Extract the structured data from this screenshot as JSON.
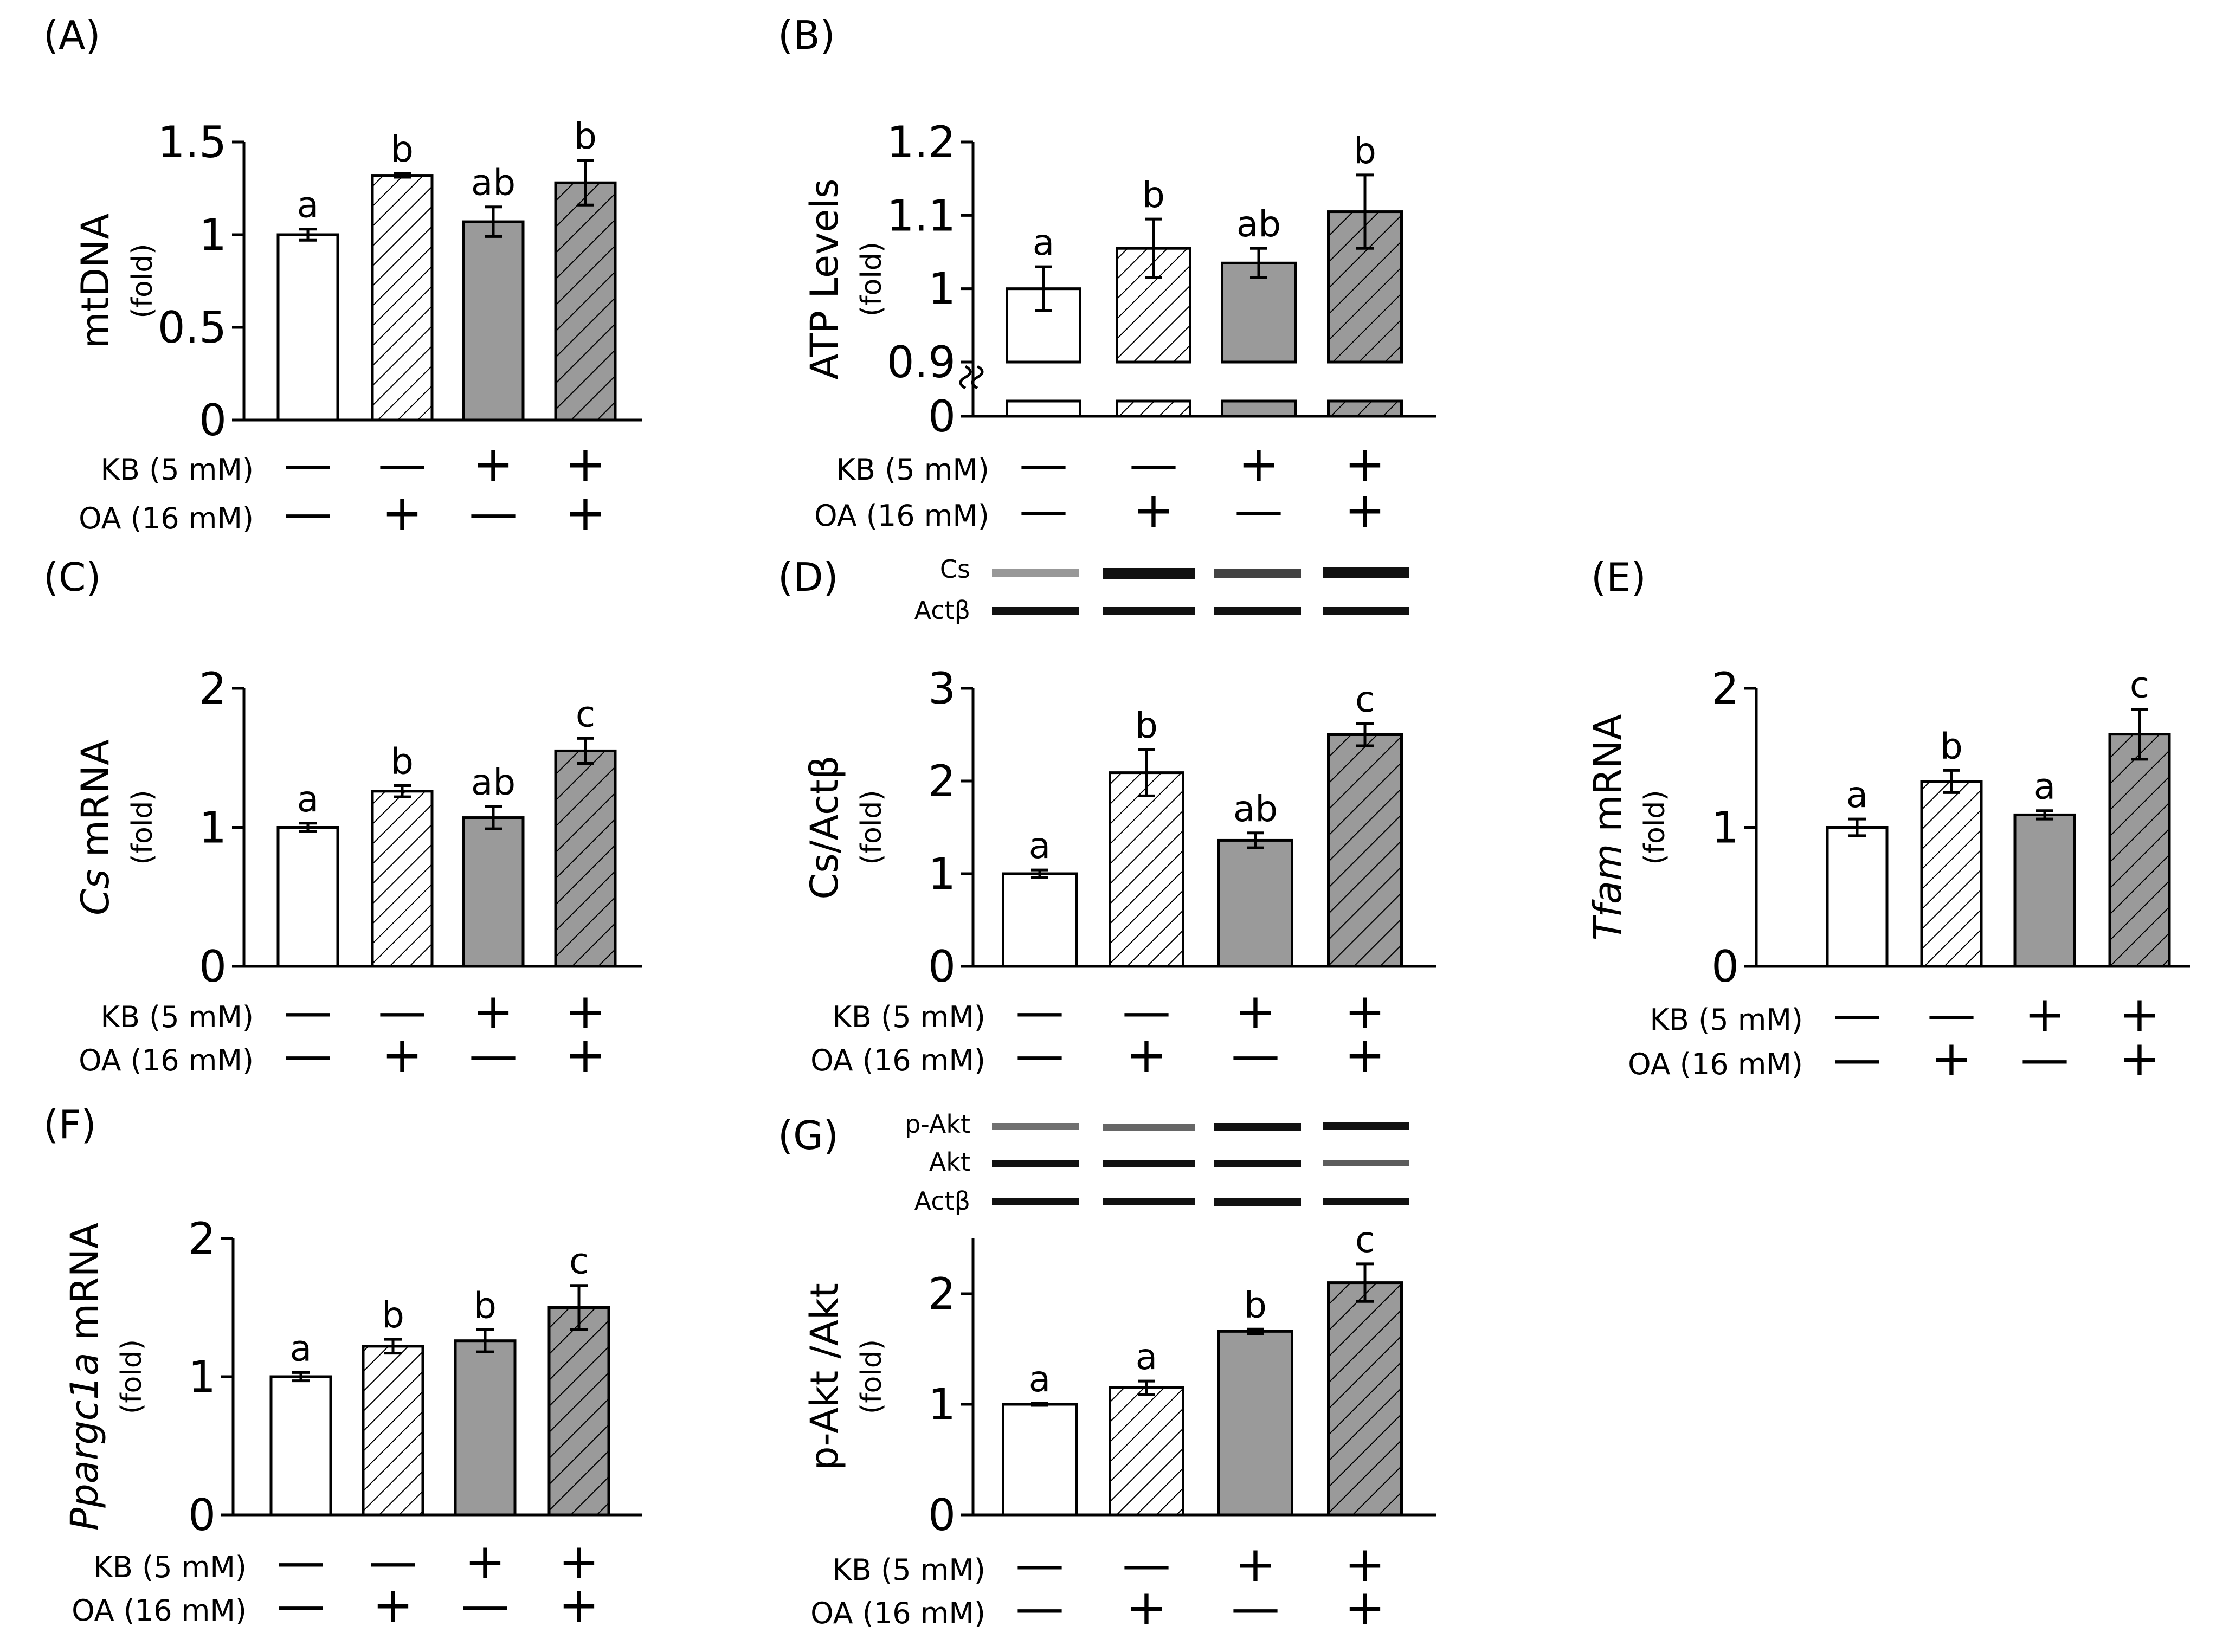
{
  "figure": {
    "condition_labels": {
      "kb": "KB (5 mM)",
      "oa": "OA (16 mM)"
    },
    "kb_signs": [
      "—",
      "—",
      "+",
      "+"
    ],
    "oa_signs": [
      "—",
      "+",
      "—",
      "+"
    ],
    "bar_styles": [
      "white",
      "hatch",
      "gray",
      "grayhatch"
    ],
    "colors": {
      "gray": "#9a9a9a",
      "white": "#ffffff",
      "line": "#000000"
    }
  },
  "chart_data": [
    {
      "id": "A",
      "type": "bar",
      "panel_label": "(A)",
      "ylabel_parts": [
        {
          "text": "mtDNA",
          "italic": false
        }
      ],
      "yunit": "(fold)",
      "ylim": [
        0,
        1.5
      ],
      "yticks": [
        0,
        0.5,
        1,
        1.5
      ],
      "ytick_labels": [
        "0",
        "0.5",
        "1",
        "1.5"
      ],
      "values": [
        1.0,
        1.32,
        1.07,
        1.28
      ],
      "errors": [
        0.03,
        0.01,
        0.08,
        0.12
      ],
      "letters": [
        "a",
        "b",
        "ab",
        "b"
      ]
    },
    {
      "id": "B",
      "type": "bar",
      "panel_label": "(B)",
      "ylabel_parts": [
        {
          "text": "ATP Levels",
          "italic": false
        }
      ],
      "yunit": "(fold)",
      "ylim": [
        0.85,
        1.2
      ],
      "axis_break": true,
      "break_floor_label": "0",
      "yticks": [
        0.9,
        1.0,
        1.1,
        1.2
      ],
      "ytick_labels": [
        "0.9",
        "1",
        "1.1",
        "1.2"
      ],
      "values": [
        1.0,
        1.055,
        1.035,
        1.105
      ],
      "errors": [
        0.03,
        0.04,
        0.02,
        0.05
      ],
      "letters": [
        "a",
        "b",
        "ab",
        "b"
      ]
    },
    {
      "id": "C",
      "type": "bar",
      "panel_label": "(C)",
      "ylabel_parts": [
        {
          "text": "Cs",
          "italic": true
        },
        {
          "text": " mRNA",
          "italic": false
        }
      ],
      "yunit": "(fold)",
      "ylim": [
        0,
        2
      ],
      "yticks": [
        0,
        1,
        2
      ],
      "ytick_labels": [
        "0",
        "1",
        "2"
      ],
      "values": [
        1.0,
        1.26,
        1.07,
        1.55
      ],
      "errors": [
        0.03,
        0.04,
        0.08,
        0.09
      ],
      "letters": [
        "a",
        "b",
        "ab",
        "c"
      ]
    },
    {
      "id": "D",
      "type": "bar",
      "panel_label": "(D)",
      "ylabel_parts": [
        {
          "text": "Cs/Actβ",
          "italic": false
        }
      ],
      "yunit": "(fold)",
      "ylim": [
        0,
        3
      ],
      "yticks": [
        0,
        1,
        2,
        3
      ],
      "ytick_labels": [
        "0",
        "1",
        "2",
        "3"
      ],
      "values": [
        1.0,
        2.09,
        1.36,
        2.5
      ],
      "errors": [
        0.04,
        0.25,
        0.08,
        0.12
      ],
      "letters": [
        "a",
        "b",
        "ab",
        "c"
      ],
      "blot_labels": [
        "Cs",
        "Actβ"
      ]
    },
    {
      "id": "E",
      "type": "bar",
      "panel_label": "(E)",
      "ylabel_parts": [
        {
          "text": "Tfam",
          "italic": true
        },
        {
          "text": " mRNA",
          "italic": false
        }
      ],
      "yunit": "(fold)",
      "ylim": [
        0,
        2
      ],
      "yticks": [
        0,
        1,
        2
      ],
      "ytick_labels": [
        "0",
        "1",
        "2"
      ],
      "values": [
        1.0,
        1.33,
        1.09,
        1.67
      ],
      "errors": [
        0.06,
        0.08,
        0.03,
        0.18
      ],
      "letters": [
        "a",
        "b",
        "a",
        "c"
      ]
    },
    {
      "id": "F",
      "type": "bar",
      "panel_label": "(F)",
      "ylabel_parts": [
        {
          "text": "Ppargc1a",
          "italic": true
        },
        {
          "text": " mRNA",
          "italic": false
        }
      ],
      "yunit": "(fold)",
      "ylim": [
        0,
        2
      ],
      "yticks": [
        0,
        1,
        2
      ],
      "ytick_labels": [
        "0",
        "1",
        "2"
      ],
      "values": [
        1.0,
        1.22,
        1.26,
        1.5
      ],
      "errors": [
        0.03,
        0.05,
        0.08,
        0.16
      ],
      "letters": [
        "a",
        "b",
        "b",
        "c"
      ]
    },
    {
      "id": "G",
      "type": "bar",
      "panel_label": "(G)",
      "ylabel_parts": [
        {
          "text": "p-Akt /Akt",
          "italic": false
        }
      ],
      "yunit": "(fold)",
      "ylim": [
        0,
        2.5
      ],
      "yticks": [
        0,
        1,
        2
      ],
      "ytick_labels": [
        "0",
        "1",
        "2"
      ],
      "values": [
        1.0,
        1.15,
        1.66,
        2.1
      ],
      "errors": [
        0.01,
        0.06,
        0.02,
        0.17
      ],
      "letters": [
        "a",
        "a",
        "b",
        "c"
      ],
      "blot_labels": [
        "p-Akt",
        "Akt",
        "Actβ"
      ]
    }
  ]
}
